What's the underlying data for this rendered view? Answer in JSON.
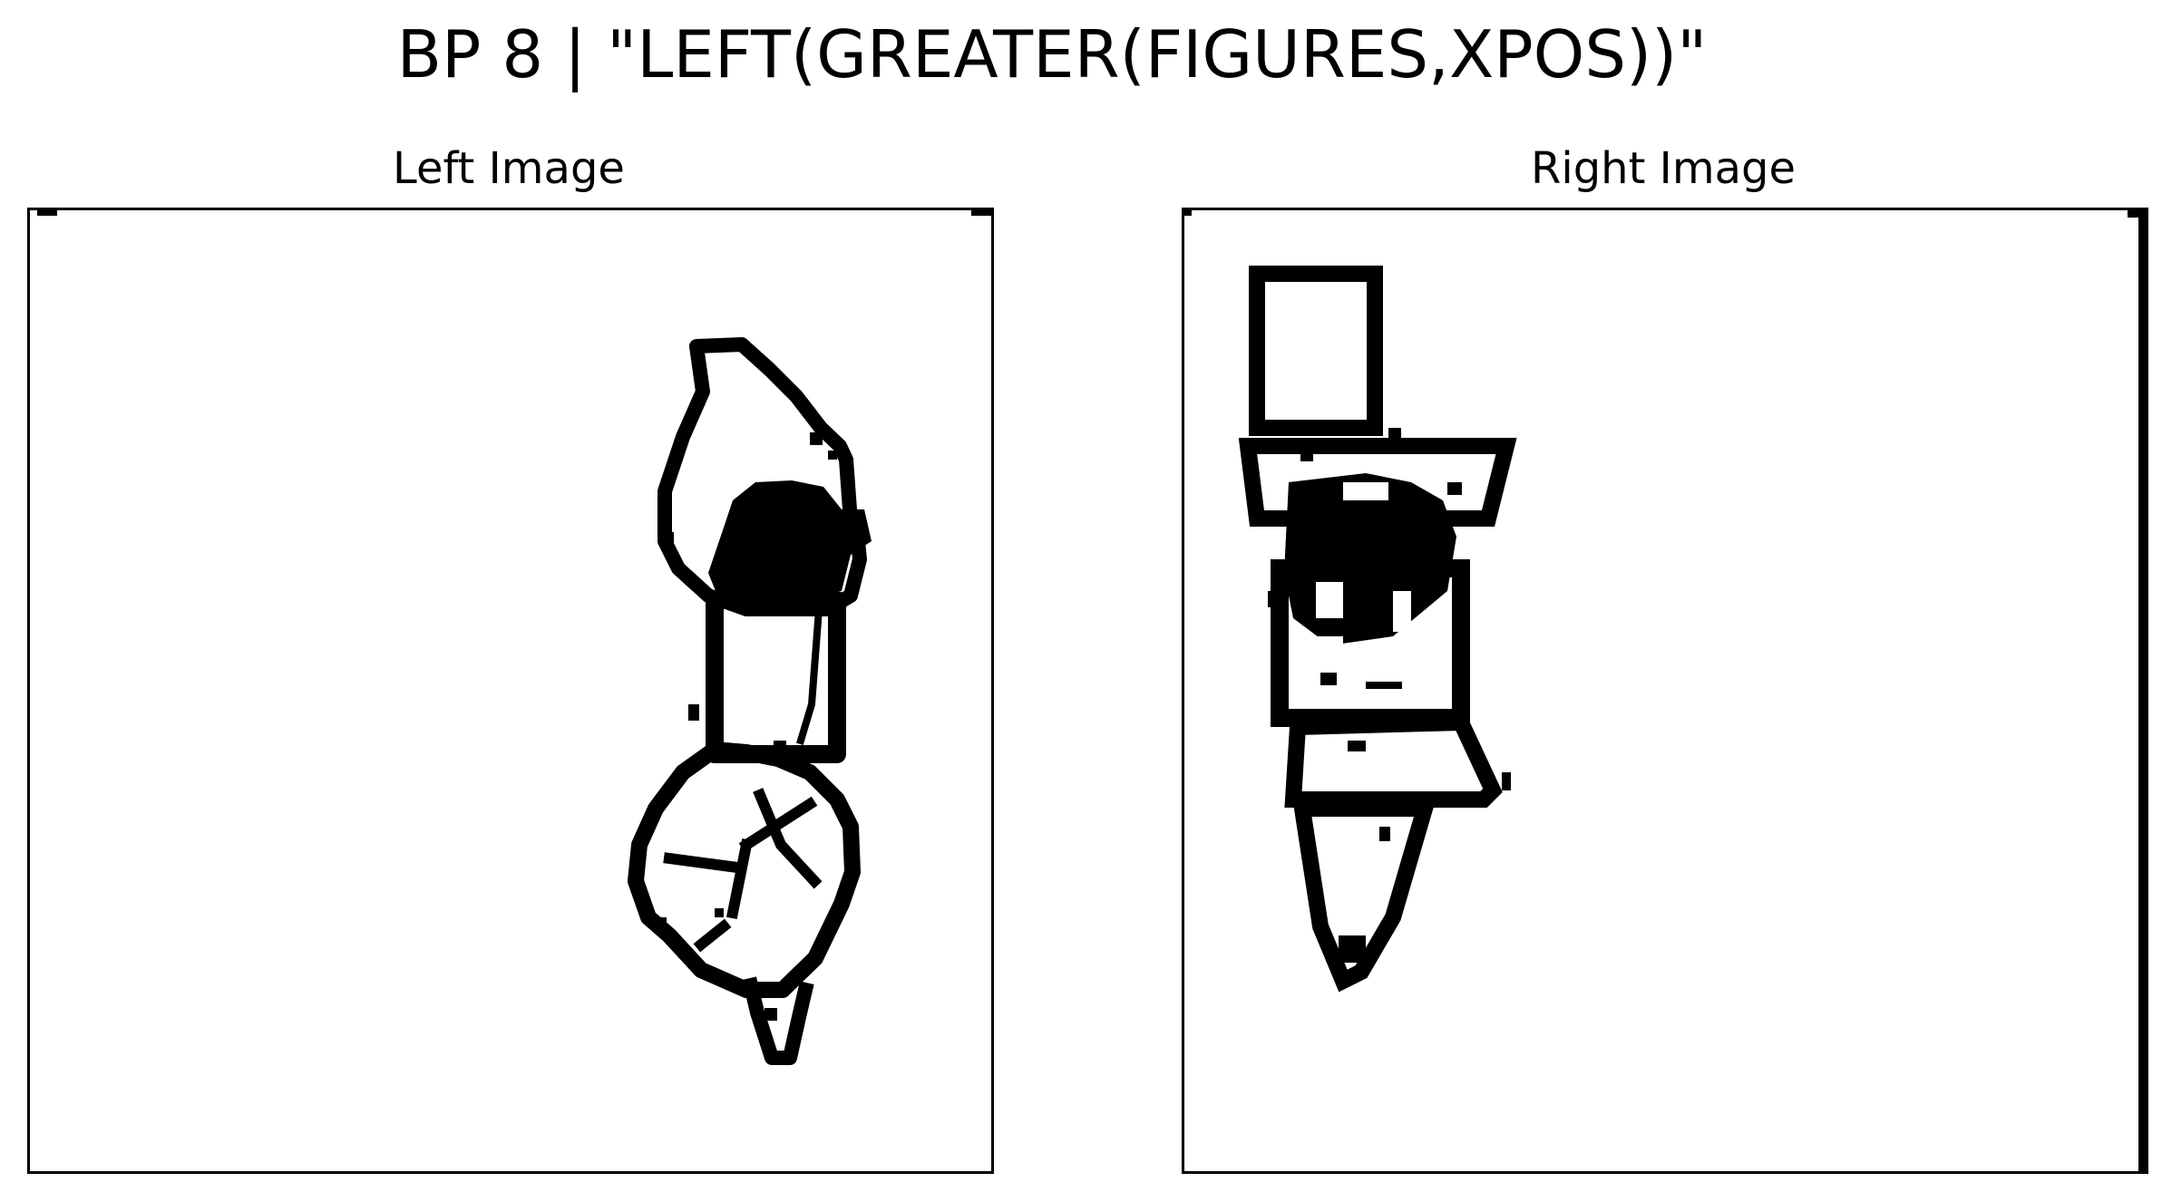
{
  "title": "BP 8 | \"LEFT(GREATER(FIGURES,XPOS))\"",
  "panels": {
    "left": {
      "title": "Left Image"
    },
    "right": {
      "title": "Right Image"
    }
  },
  "colors": {
    "ink": "#000000",
    "background": "#ffffff"
  }
}
